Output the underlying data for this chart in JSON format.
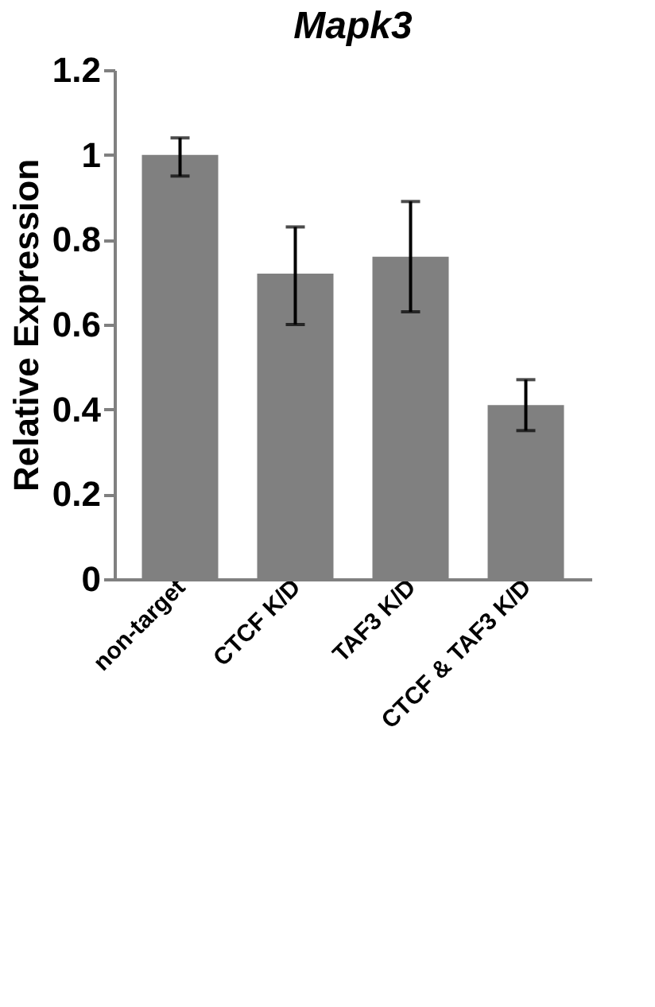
{
  "chart_data": {
    "type": "bar",
    "title": "Mapk3",
    "ylabel": "Relative Expression",
    "categories": [
      "non-target",
      "CTCF K/D",
      "TAF3 K/D",
      "CTCF & TAF3 K/D"
    ],
    "values": [
      1.0,
      0.72,
      0.76,
      0.41
    ],
    "color": "#808080",
    "errors": [
      [
        0.95,
        1.04
      ],
      [
        0.6,
        0.83
      ],
      [
        0.63,
        0.89
      ],
      [
        0.35,
        0.47
      ]
    ],
    "ylim": [
      0,
      1.2
    ],
    "yticks": [
      0,
      0.2,
      0.4,
      0.6,
      0.8,
      1,
      1.2
    ],
    "grid": false
  }
}
